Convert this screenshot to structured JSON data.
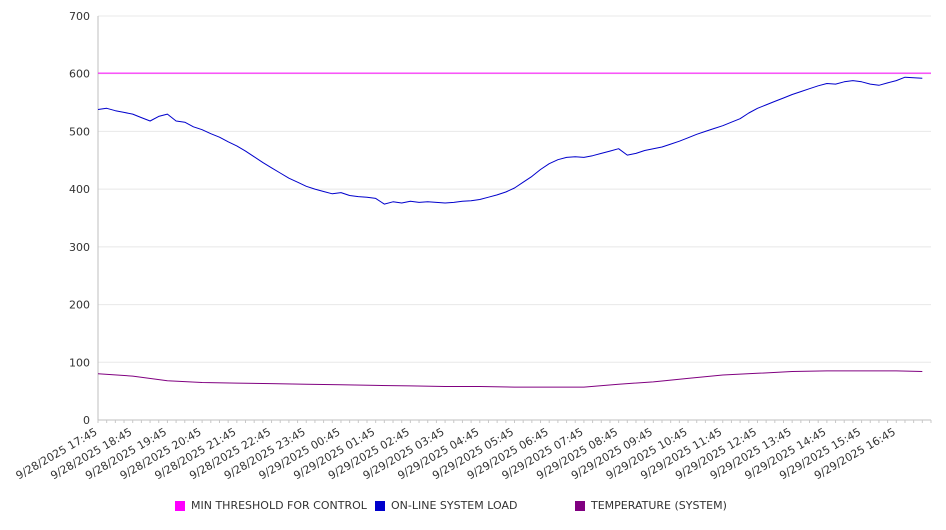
{
  "chart_data": {
    "type": "line",
    "title": "",
    "xlabel": "",
    "ylabel": "",
    "ylim": [
      0,
      700
    ],
    "y_ticks": [
      0,
      100,
      200,
      300,
      400,
      500,
      600,
      700
    ],
    "x_tick_labels": [
      "9/28/2025 17:45",
      "9/28/2025 18:45",
      "9/28/2025 19:45",
      "9/28/2025 20:45",
      "9/28/2025 21:45",
      "9/28/2025 22:45",
      "9/28/2025 23:45",
      "9/29/2025 00:45",
      "9/29/2025 01:45",
      "9/29/2025 02:45",
      "9/29/2025 03:45",
      "9/29/2025 04:45",
      "9/29/2025 05:45",
      "9/29/2025 06:45",
      "9/29/2025 07:45",
      "9/29/2025 08:45",
      "9/29/2025 09:45",
      "9/29/2025 10:45",
      "9/29/2025 11:45",
      "9/29/2025 12:45",
      "9/29/2025 13:45",
      "9/29/2025 14:45",
      "9/29/2025 15:45",
      "9/29/2025 16:45"
    ],
    "x_range": [
      "9/28/2025 17:45",
      "9/29/2025 17:45"
    ],
    "grid": true,
    "legend_position": "bottom",
    "series": [
      {
        "name": "MIN THRESHOLD FOR CONTROL",
        "color": "#ff00ff",
        "points": [
          [
            "9/28/2025 17:45",
            601
          ],
          [
            "9/29/2025 17:45",
            601
          ]
        ]
      },
      {
        "name": "ON-LINE SYSTEM LOAD",
        "color": "#0000cc",
        "points": [
          [
            "9/28/2025 17:45",
            538
          ],
          [
            "9/28/2025 18:00",
            540
          ],
          [
            "9/28/2025 18:15",
            536
          ],
          [
            "9/28/2025 18:30",
            533
          ],
          [
            "9/28/2025 18:45",
            530
          ],
          [
            "9/28/2025 19:00",
            524
          ],
          [
            "9/28/2025 19:15",
            518
          ],
          [
            "9/28/2025 19:30",
            526
          ],
          [
            "9/28/2025 19:45",
            530
          ],
          [
            "9/28/2025 20:00",
            518
          ],
          [
            "9/28/2025 20:15",
            516
          ],
          [
            "9/28/2025 20:30",
            508
          ],
          [
            "9/28/2025 20:45",
            503
          ],
          [
            "9/28/2025 21:00",
            496
          ],
          [
            "9/28/2025 21:15",
            490
          ],
          [
            "9/28/2025 21:30",
            482
          ],
          [
            "9/28/2025 21:45",
            475
          ],
          [
            "9/28/2025 22:00",
            466
          ],
          [
            "9/28/2025 22:15",
            456
          ],
          [
            "9/28/2025 22:30",
            446
          ],
          [
            "9/28/2025 22:45",
            437
          ],
          [
            "9/28/2025 23:00",
            428
          ],
          [
            "9/28/2025 23:15",
            419
          ],
          [
            "9/28/2025 23:30",
            412
          ],
          [
            "9/28/2025 23:45",
            405
          ],
          [
            "9/29/2025 00:00",
            400
          ],
          [
            "9/29/2025 00:15",
            396
          ],
          [
            "9/29/2025 00:30",
            392
          ],
          [
            "9/29/2025 00:45",
            394
          ],
          [
            "9/29/2025 01:00",
            389
          ],
          [
            "9/29/2025 01:15",
            387
          ],
          [
            "9/29/2025 01:30",
            386
          ],
          [
            "9/29/2025 01:45",
            384
          ],
          [
            "9/29/2025 02:00",
            374
          ],
          [
            "9/29/2025 02:15",
            378
          ],
          [
            "9/29/2025 02:30",
            376
          ],
          [
            "9/29/2025 02:45",
            379
          ],
          [
            "9/29/2025 03:00",
            377
          ],
          [
            "9/29/2025 03:15",
            378
          ],
          [
            "9/29/2025 03:30",
            377
          ],
          [
            "9/29/2025 03:45",
            376
          ],
          [
            "9/29/2025 04:00",
            377
          ],
          [
            "9/29/2025 04:15",
            379
          ],
          [
            "9/29/2025 04:30",
            380
          ],
          [
            "9/29/2025 04:45",
            382
          ],
          [
            "9/29/2025 05:00",
            386
          ],
          [
            "9/29/2025 05:15",
            390
          ],
          [
            "9/29/2025 05:30",
            395
          ],
          [
            "9/29/2025 05:45",
            402
          ],
          [
            "9/29/2025 06:00",
            412
          ],
          [
            "9/29/2025 06:15",
            422
          ],
          [
            "9/29/2025 06:30",
            434
          ],
          [
            "9/29/2025 06:45",
            444
          ],
          [
            "9/29/2025 07:00",
            451
          ],
          [
            "9/29/2025 07:15",
            455
          ],
          [
            "9/29/2025 07:30",
            456
          ],
          [
            "9/29/2025 07:45",
            455
          ],
          [
            "9/29/2025 08:00",
            458
          ],
          [
            "9/29/2025 08:15",
            462
          ],
          [
            "9/29/2025 08:30",
            466
          ],
          [
            "9/29/2025 08:45",
            470
          ],
          [
            "9/29/2025 09:00",
            459
          ],
          [
            "9/29/2025 09:15",
            462
          ],
          [
            "9/29/2025 09:30",
            467
          ],
          [
            "9/29/2025 09:45",
            470
          ],
          [
            "9/29/2025 10:00",
            473
          ],
          [
            "9/29/2025 10:15",
            478
          ],
          [
            "9/29/2025 10:30",
            483
          ],
          [
            "9/29/2025 10:45",
            489
          ],
          [
            "9/29/2025 11:00",
            495
          ],
          [
            "9/29/2025 11:15",
            500
          ],
          [
            "9/29/2025 11:30",
            505
          ],
          [
            "9/29/2025 11:45",
            510
          ],
          [
            "9/29/2025 12:00",
            516
          ],
          [
            "9/29/2025 12:15",
            522
          ],
          [
            "9/29/2025 12:30",
            532
          ],
          [
            "9/29/2025 12:45",
            540
          ],
          [
            "9/29/2025 13:00",
            546
          ],
          [
            "9/29/2025 13:15",
            552
          ],
          [
            "9/29/2025 13:30",
            558
          ],
          [
            "9/29/2025 13:45",
            564
          ],
          [
            "9/29/2025 14:00",
            569
          ],
          [
            "9/29/2025 14:15",
            574
          ],
          [
            "9/29/2025 14:30",
            579
          ],
          [
            "9/29/2025 14:45",
            583
          ],
          [
            "9/29/2025 15:00",
            582
          ],
          [
            "9/29/2025 15:15",
            586
          ],
          [
            "9/29/2025 15:30",
            588
          ],
          [
            "9/29/2025 15:45",
            586
          ],
          [
            "9/29/2025 16:00",
            582
          ],
          [
            "9/29/2025 16:15",
            580
          ],
          [
            "9/29/2025 16:30",
            584
          ],
          [
            "9/29/2025 16:45",
            588
          ],
          [
            "9/29/2025 17:00",
            594
          ],
          [
            "9/29/2025 17:15",
            593
          ],
          [
            "9/29/2025 17:30",
            592
          ]
        ]
      },
      {
        "name": "TEMPERATURE (SYSTEM)",
        "color": "#800080",
        "points": [
          [
            "9/28/2025 17:45",
            80
          ],
          [
            "9/28/2025 18:45",
            76
          ],
          [
            "9/28/2025 19:45",
            68
          ],
          [
            "9/28/2025 20:45",
            65
          ],
          [
            "9/28/2025 21:45",
            64
          ],
          [
            "9/28/2025 22:45",
            63
          ],
          [
            "9/28/2025 23:45",
            62
          ],
          [
            "9/29/2025 00:45",
            61
          ],
          [
            "9/29/2025 01:45",
            60
          ],
          [
            "9/29/2025 02:45",
            59
          ],
          [
            "9/29/2025 03:45",
            58
          ],
          [
            "9/29/2025 04:45",
            58
          ],
          [
            "9/29/2025 05:45",
            57
          ],
          [
            "9/29/2025 06:45",
            57
          ],
          [
            "9/29/2025 07:45",
            57
          ],
          [
            "9/29/2025 08:45",
            62
          ],
          [
            "9/29/2025 09:45",
            66
          ],
          [
            "9/29/2025 10:45",
            72
          ],
          [
            "9/29/2025 11:45",
            78
          ],
          [
            "9/29/2025 12:45",
            81
          ],
          [
            "9/29/2025 13:45",
            84
          ],
          [
            "9/29/2025 14:45",
            85
          ],
          [
            "9/29/2025 15:45",
            85
          ],
          [
            "9/29/2025 16:45",
            85
          ],
          [
            "9/29/2025 17:30",
            84
          ]
        ]
      }
    ]
  }
}
